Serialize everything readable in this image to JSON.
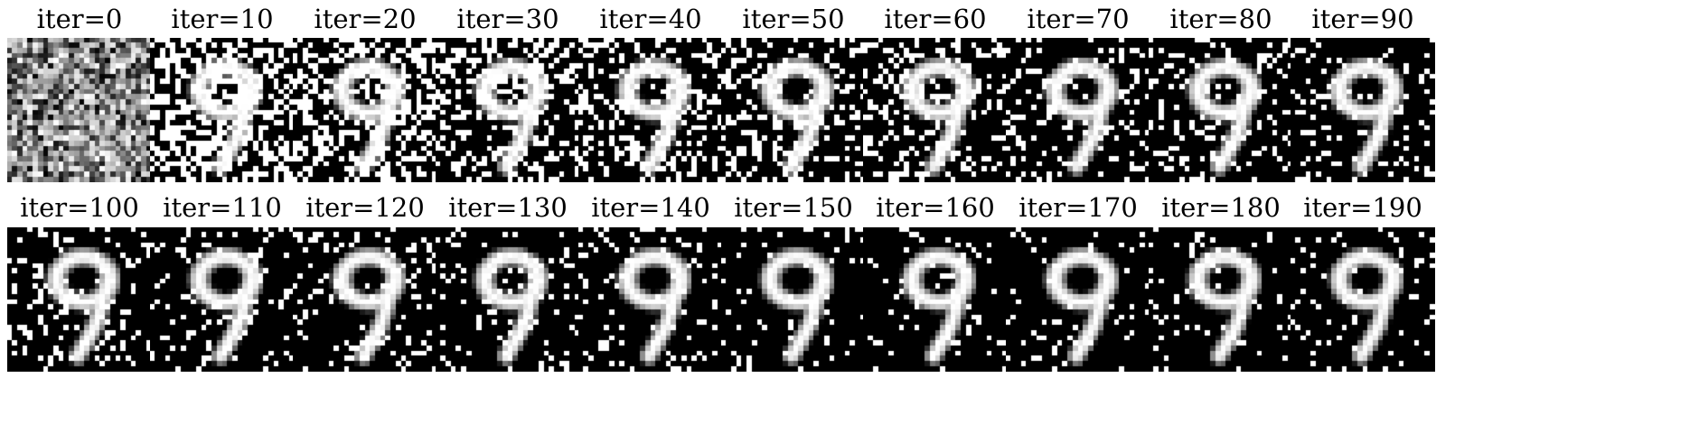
{
  "figure": {
    "description_free": true,
    "rows": [
      {
        "panels": [
          {
            "title": "iter=0",
            "iteration": 0
          },
          {
            "title": "iter=10",
            "iteration": 10
          },
          {
            "title": "iter=20",
            "iteration": 20
          },
          {
            "title": "iter=30",
            "iteration": 30
          },
          {
            "title": "iter=40",
            "iteration": 40
          },
          {
            "title": "iter=50",
            "iteration": 50
          },
          {
            "title": "iter=60",
            "iteration": 60
          },
          {
            "title": "iter=70",
            "iteration": 70
          },
          {
            "title": "iter=80",
            "iteration": 80
          },
          {
            "title": "iter=90",
            "iteration": 90
          }
        ]
      },
      {
        "panels": [
          {
            "title": "iter=100",
            "iteration": 100
          },
          {
            "title": "iter=110",
            "iteration": 110
          },
          {
            "title": "iter=120",
            "iteration": 120
          },
          {
            "title": "iter=130",
            "iteration": 130
          },
          {
            "title": "iter=140",
            "iteration": 140
          },
          {
            "title": "iter=150",
            "iteration": 150
          },
          {
            "title": "iter=160",
            "iteration": 160
          },
          {
            "title": "iter=170",
            "iteration": 170
          },
          {
            "title": "iter=180",
            "iteration": 180
          },
          {
            "title": "iter=190",
            "iteration": 190
          }
        ]
      }
    ],
    "colors": {
      "background": "#ffffff",
      "pixel_dark": "#000000",
      "pixel_light": "#ffffff"
    }
  }
}
